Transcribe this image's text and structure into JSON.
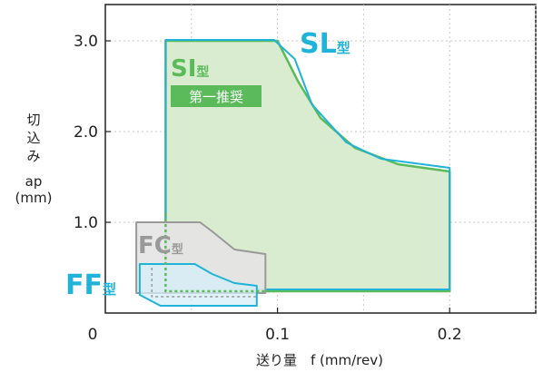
{
  "chart_data": {
    "type": "area",
    "title": "",
    "xlabel": "送り量　f (mm/rev)",
    "ylabel": [
      "切",
      "込",
      "み",
      "ap",
      "(mm)"
    ],
    "xlim": [
      0,
      0.25
    ],
    "ylim": [
      0,
      3.4
    ],
    "x_ticks": [
      "0",
      "0.1",
      "0.2"
    ],
    "x_tick_values": [
      0,
      0.1,
      0.2
    ],
    "y_ticks": [
      "1.0",
      "2.0",
      "3.0"
    ],
    "y_tick_values": [
      1.0,
      2.0,
      3.0
    ],
    "minor_x_gridlines": [
      0.05,
      0.15,
      0.25
    ],
    "grid": true,
    "series": [
      {
        "name": "SL型",
        "label_parts": [
          "SL",
          "型"
        ],
        "color": "#1fb3d9",
        "fill": "none",
        "points": [
          [
            0.035,
            3.01
          ],
          [
            0.098,
            3.01
          ],
          [
            0.11,
            2.8
          ],
          [
            0.12,
            2.3
          ],
          [
            0.14,
            1.88
          ],
          [
            0.16,
            1.7
          ],
          [
            0.2,
            1.6
          ],
          [
            0.2,
            0.26
          ],
          [
            0.035,
            0.26
          ]
        ]
      },
      {
        "name": "SI型",
        "label_parts": [
          "SI",
          "型"
        ],
        "badge": "第一推奨",
        "color": "#5bbb5b",
        "fill": "#d9ecd0",
        "dashed_bottom": true,
        "points": [
          [
            0.035,
            3.0
          ],
          [
            0.1,
            3.0
          ],
          [
            0.112,
            2.55
          ],
          [
            0.125,
            2.15
          ],
          [
            0.145,
            1.82
          ],
          [
            0.17,
            1.64
          ],
          [
            0.2,
            1.56
          ],
          [
            0.2,
            0.24
          ],
          [
            0.035,
            0.24
          ]
        ]
      },
      {
        "name": "FC型",
        "label_parts": [
          "FC",
          "型"
        ],
        "color": "#999999",
        "fill": "#e4e4e4",
        "points": [
          [
            0.018,
            1.0
          ],
          [
            0.055,
            1.0
          ],
          [
            0.062,
            0.9
          ],
          [
            0.075,
            0.7
          ],
          [
            0.093,
            0.65
          ],
          [
            0.093,
            0.22
          ],
          [
            0.018,
            0.22
          ]
        ]
      },
      {
        "name": "FF型",
        "label_parts": [
          "FF",
          "型"
        ],
        "color": "#1fb3d9",
        "fill": "#d5edf8",
        "points": [
          [
            0.02,
            0.54
          ],
          [
            0.052,
            0.54
          ],
          [
            0.062,
            0.43
          ],
          [
            0.075,
            0.33
          ],
          [
            0.088,
            0.3
          ],
          [
            0.088,
            0.08
          ],
          [
            0.032,
            0.08
          ],
          [
            0.02,
            0.2
          ]
        ]
      }
    ]
  }
}
